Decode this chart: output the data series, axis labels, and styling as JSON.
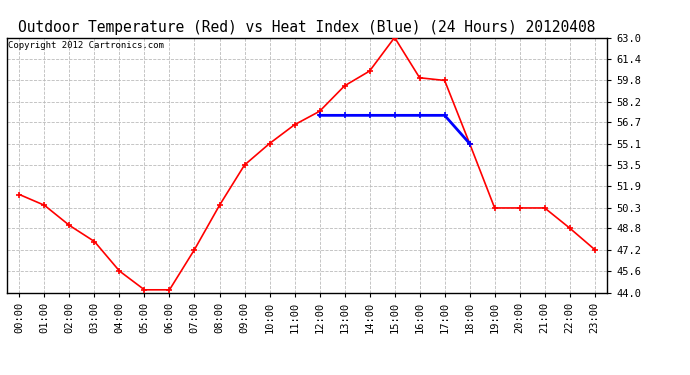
{
  "title": "Outdoor Temperature (Red) vs Heat Index (Blue) (24 Hours) 20120408",
  "copyright": "Copyright 2012 Cartronics.com",
  "hours": [
    "00:00",
    "01:00",
    "02:00",
    "03:00",
    "04:00",
    "05:00",
    "06:00",
    "07:00",
    "08:00",
    "09:00",
    "10:00",
    "11:00",
    "12:00",
    "13:00",
    "14:00",
    "15:00",
    "16:00",
    "17:00",
    "18:00",
    "19:00",
    "20:00",
    "21:00",
    "22:00",
    "23:00"
  ],
  "temp_red": [
    51.3,
    50.5,
    49.0,
    47.8,
    45.6,
    44.2,
    44.2,
    47.2,
    50.5,
    53.5,
    55.1,
    56.5,
    57.5,
    59.4,
    60.5,
    63.0,
    60.0,
    59.8,
    55.1,
    50.3,
    50.3,
    50.3,
    48.8,
    47.2
  ],
  "heat_blue": [
    null,
    null,
    null,
    null,
    null,
    null,
    null,
    null,
    null,
    null,
    null,
    null,
    57.2,
    57.2,
    57.2,
    57.2,
    57.2,
    57.2,
    55.1,
    null,
    null,
    null,
    null,
    null
  ],
  "ylim": [
    44.0,
    63.0
  ],
  "yticks": [
    44.0,
    45.6,
    47.2,
    48.8,
    50.3,
    51.9,
    53.5,
    55.1,
    56.7,
    58.2,
    59.8,
    61.4,
    63.0
  ],
  "red_color": "#ff0000",
  "blue_color": "#0000ff",
  "bg_color": "#ffffff",
  "grid_color": "#bbbbbb",
  "title_fontsize": 10.5,
  "copyright_fontsize": 6.5,
  "tick_fontsize": 7.5
}
